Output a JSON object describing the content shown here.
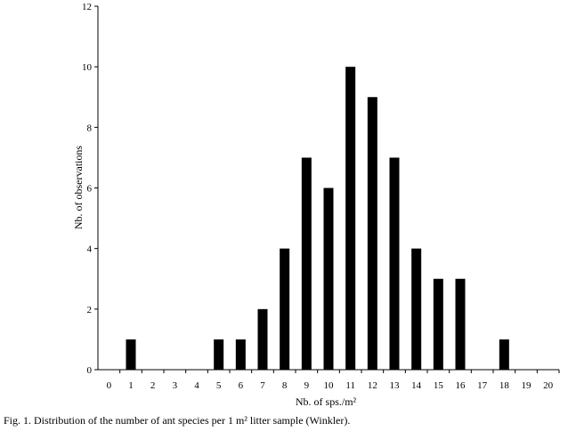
{
  "chart_data": {
    "type": "bar",
    "categories": [
      "0",
      "1",
      "2",
      "3",
      "4",
      "5",
      "6",
      "7",
      "8",
      "9",
      "10",
      "11",
      "12",
      "13",
      "14",
      "15",
      "16",
      "17",
      "18",
      "19",
      "20"
    ],
    "values": [
      0,
      1,
      0,
      0,
      0,
      1,
      1,
      2,
      4,
      7,
      6,
      10,
      9,
      7,
      4,
      3,
      3,
      0,
      1,
      0,
      0
    ],
    "ylabel": "Nb. of observations",
    "xlabel": "Nb. of sps./m²",
    "ylim": [
      0,
      12
    ],
    "yticks": [
      0,
      2,
      4,
      6,
      8,
      10,
      12
    ],
    "grid": false,
    "legend": "none",
    "bar_color": "#000000",
    "caption": "Fig. 1. Distribution of the number of ant species per 1 m² litter sample (Winkler)."
  }
}
